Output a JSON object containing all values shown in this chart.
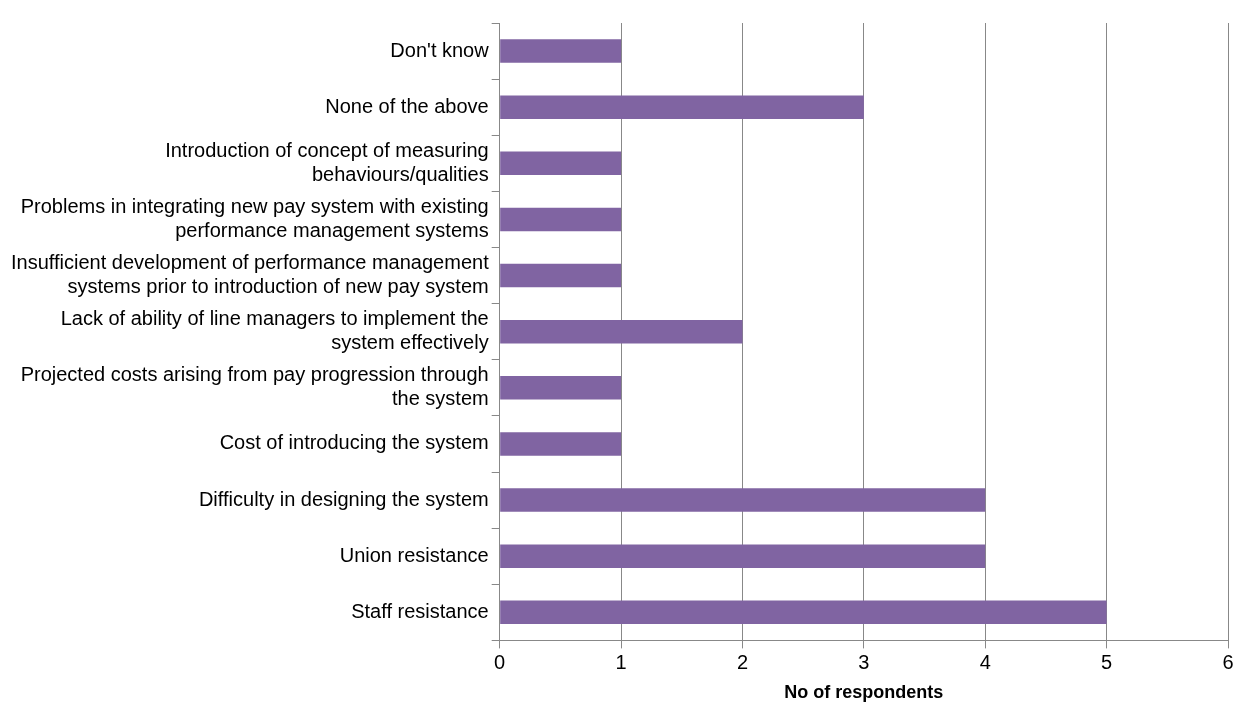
{
  "chart_data": {
    "type": "bar",
    "orientation": "horizontal",
    "xlabel": "No of respondents",
    "categories": [
      "Don't know",
      "None of the above",
      "Introduction of concept of measuring behaviours/qualities",
      "Problems in integrating new pay system with existing performance management systems",
      "Insufficient development of performance management systems prior to introduction of new pay system",
      "Lack of ability of line managers to implement the system effectively",
      "Projected costs arising from pay progression through the system",
      "Cost of introducing the system",
      "Difficulty in designing the system",
      "Union resistance",
      "Staff resistance"
    ],
    "values": [
      1,
      3,
      1,
      1,
      1,
      2,
      1,
      1,
      4,
      4,
      5
    ],
    "color": "#8064a2",
    "xlim": [
      0,
      6
    ],
    "xticks": [
      0,
      1,
      2,
      3,
      4,
      5,
      6
    ],
    "grid": "x",
    "legend": false
  }
}
